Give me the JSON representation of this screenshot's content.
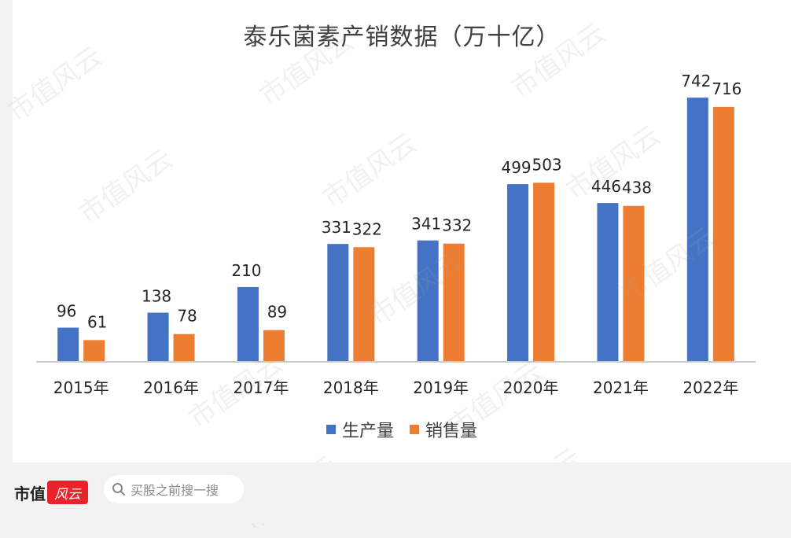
{
  "chart_data": {
    "type": "bar",
    "title": "泰乐菌素产销数据（万十亿）",
    "categories": [
      "2015年",
      "2016年",
      "2017年",
      "2018年",
      "2019年",
      "2020年",
      "2021年",
      "2022年"
    ],
    "series": [
      {
        "name": "生产量",
        "color": "#4472c4",
        "values": [
          96,
          138,
          210,
          331,
          341,
          499,
          446,
          742
        ]
      },
      {
        "name": "销售量",
        "color": "#ed7d31",
        "values": [
          61,
          78,
          89,
          322,
          332,
          503,
          438,
          716
        ]
      }
    ],
    "ylim": [
      0,
      760
    ],
    "grid": false,
    "legend": "bottom"
  },
  "footer": {
    "brand": "市值",
    "brand_logo_text": "风云",
    "search_placeholder": "买股之前搜一搜"
  },
  "watermark_text": "市值风云"
}
